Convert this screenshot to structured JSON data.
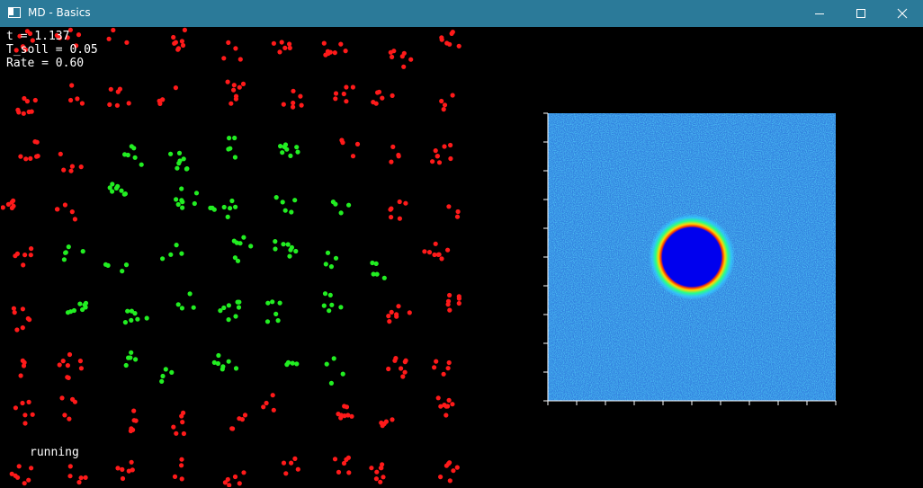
{
  "window": {
    "title": "MD - Basics",
    "controls": {
      "minimize": "minimize-icon",
      "maximize": "maximize-icon",
      "close": "close-icon"
    }
  },
  "simulation": {
    "t_label": "t = 1.137",
    "t_soll_label": "T_soll = 0.05",
    "rate_label": "Rate = 0.60",
    "status": "running",
    "colors": {
      "background": "#000000",
      "outer_particles": "#ff1a1a",
      "inner_particles": "#22ee22"
    }
  },
  "density_plot": {
    "colors": {
      "background": "#2f86dd",
      "field_dark": "#1733c8",
      "field_light": "#40d0ff",
      "disc": "#0000ee",
      "ring_inner": "#ffd800",
      "ring_outer": "#27ff8a",
      "axis": "#ffffff"
    },
    "x_ticks": 11,
    "y_ticks": 11
  }
}
